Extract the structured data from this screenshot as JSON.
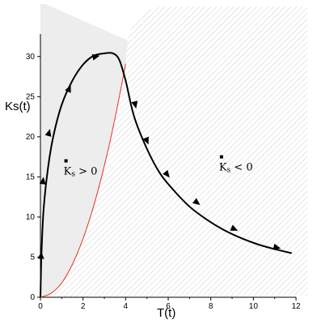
{
  "chart_data": {
    "type": "line",
    "title": "",
    "xlabel": "T(t)",
    "ylabel": "Ks(t)",
    "xlim": [
      0,
      12
    ],
    "ylim": [
      0,
      32
    ],
    "xticks": [
      0,
      2,
      4,
      6,
      8,
      10,
      12
    ],
    "yticks": [
      0,
      5,
      10,
      15,
      20,
      25,
      30
    ],
    "grid": false,
    "colors": {
      "trajectory": "#000000",
      "boundary": "#e8322a",
      "region_fill": "#ededed",
      "hatch": "#cfcfcf"
    },
    "series": [
      {
        "style": "solid-black-with-arrows",
        "x": [
          0,
          0.05,
          0.15,
          0.35,
          0.6,
          1.0,
          1.5,
          2.0,
          2.5,
          3.0,
          3.4,
          3.7,
          4.0,
          4.4,
          5.0,
          5.6,
          6.2,
          7.0,
          7.8,
          8.6,
          9.4,
          10.2,
          11.0,
          11.8
        ],
        "y": [
          0,
          5.5,
          11,
          16,
          20,
          24,
          27,
          29,
          30.1,
          30.4,
          30.4,
          29.6,
          27,
          22.5,
          18.5,
          15.5,
          13.5,
          11.3,
          9.7,
          8.4,
          7.4,
          6.6,
          6.0,
          5.5
        ]
      },
      {
        "style": "thin-red",
        "x": [
          0,
          0.5,
          1.0,
          1.5,
          2.0,
          2.5,
          3.0,
          3.5,
          4.0
        ],
        "y": [
          0,
          0.5,
          1.8,
          4.1,
          7.3,
          11.4,
          16.4,
          22.3,
          29.1
        ]
      }
    ],
    "arrow_points": [
      {
        "x": 0.03,
        "y": 5.2
      },
      {
        "x": 0.12,
        "y": 14.5
      },
      {
        "x": 0.4,
        "y": 20.5
      },
      {
        "x": 1.35,
        "y": 26
      },
      {
        "x": 2.6,
        "y": 30
      },
      {
        "x": 4.45,
        "y": 24
      },
      {
        "x": 5.0,
        "y": 19.5
      },
      {
        "x": 5.95,
        "y": 15.3
      },
      {
        "x": 7.35,
        "y": 11.8
      },
      {
        "x": 9.1,
        "y": 8.5
      },
      {
        "x": 11.1,
        "y": 6.2
      }
    ],
    "annotations": [
      {
        "label": "K",
        "sub": "s",
        "rel": " > 0",
        "x": 1.2,
        "y": 17
      },
      {
        "label": "K",
        "sub": "s",
        "rel": " < 0",
        "x": 8.5,
        "y": 17.5
      }
    ]
  }
}
